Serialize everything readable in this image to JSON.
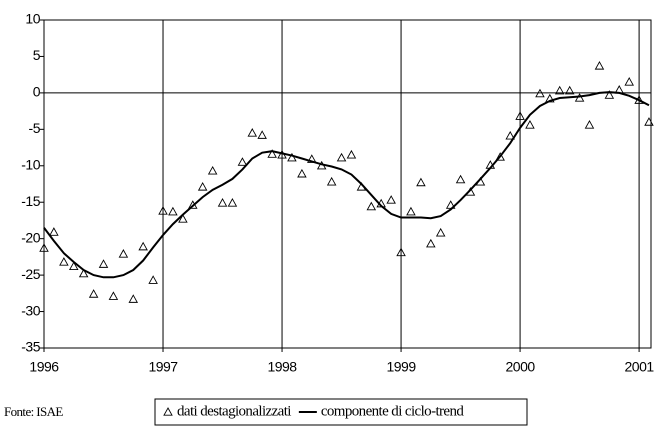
{
  "chart_data": {
    "type": "line",
    "source": "Fonte: ISAE",
    "x": [
      1996,
      1996.083,
      1996.167,
      1996.25,
      1996.333,
      1996.417,
      1996.5,
      1996.583,
      1996.667,
      1996.75,
      1996.833,
      1996.917,
      1997,
      1997.083,
      1997.167,
      1997.25,
      1997.333,
      1997.417,
      1997.5,
      1997.583,
      1997.667,
      1997.75,
      1997.833,
      1997.917,
      1998,
      1998.083,
      1998.167,
      1998.25,
      1998.333,
      1998.417,
      1998.5,
      1998.583,
      1998.667,
      1998.75,
      1998.833,
      1998.917,
      1999,
      1999.083,
      1999.167,
      1999.25,
      1999.333,
      1999.417,
      1999.5,
      1999.583,
      1999.667,
      1999.75,
      1999.833,
      1999.917,
      2000,
      2000.083,
      2000.167,
      2000.25,
      2000.333,
      2000.417,
      2000.5,
      2000.583,
      2000.667,
      2000.75,
      2000.833,
      2000.917,
      2001,
      2001.083
    ],
    "series": [
      {
        "name": "dati destagionalizzati",
        "style": "triangle",
        "color": "#000000",
        "values": [
          -21.3,
          -19.1,
          -23.2,
          -23.8,
          -24.8,
          -27.6,
          -23.5,
          -27.9,
          -22.1,
          -28.3,
          -21.1,
          -25.7,
          -16.2,
          -16.3,
          -17.3,
          -15.4,
          -12.9,
          -10.7,
          -15.1,
          -15.1,
          -9.5,
          -5.5,
          -5.8,
          -8.4,
          -8.5,
          -8.9,
          -11.1,
          -9.1,
          -10.0,
          -12.2,
          -8.9,
          -8.5,
          -12.9,
          -15.6,
          -15.2,
          -14.7,
          -21.9,
          -16.3,
          -12.3,
          -20.7,
          -19.2,
          -15.4,
          -11.9,
          -13.6,
          -12.2,
          -9.9,
          -8.8,
          -5.9,
          -3.2,
          -4.4,
          -0.1,
          -0.8,
          0.3,
          0.3,
          -0.7,
          -4.4,
          3.7,
          -0.3,
          0.4,
          1.5,
          -1.0,
          -4.0
        ]
      },
      {
        "name": "componente di ciclo-trend",
        "style": "line",
        "color": "#000000",
        "values": [
          -18.5,
          -20.3,
          -22,
          -23.2,
          -24.3,
          -25,
          -25.3,
          -25.3,
          -25,
          -24.3,
          -23,
          -21.2,
          -19.5,
          -18,
          -16.7,
          -15.5,
          -14.3,
          -13.3,
          -12.6,
          -11.8,
          -10.5,
          -9,
          -8.2,
          -8,
          -8.3,
          -8.6,
          -9,
          -9.4,
          -9.8,
          -10.1,
          -10.5,
          -11.2,
          -12.5,
          -14,
          -15.5,
          -16.6,
          -17.1,
          -17.1,
          -17.1,
          -17.2,
          -16.9,
          -16,
          -14.7,
          -13.3,
          -11.8,
          -10.3,
          -8.7,
          -6.9,
          -4.8,
          -3,
          -1.8,
          -1.1,
          -0.7,
          -0.6,
          -0.5,
          -0.3,
          0,
          0.1,
          0,
          -0.4,
          -1,
          -1.7
        ]
      }
    ],
    "xlim": [
      1996,
      2001.1
    ],
    "xticks": [
      1996,
      1997,
      1998,
      1999,
      2000,
      2001
    ],
    "ylim": [
      -35,
      10
    ],
    "yticks": [
      -35,
      -30,
      -25,
      -20,
      -15,
      -10,
      -5,
      0,
      5,
      10
    ],
    "grid": "x",
    "legend": "bottom"
  }
}
